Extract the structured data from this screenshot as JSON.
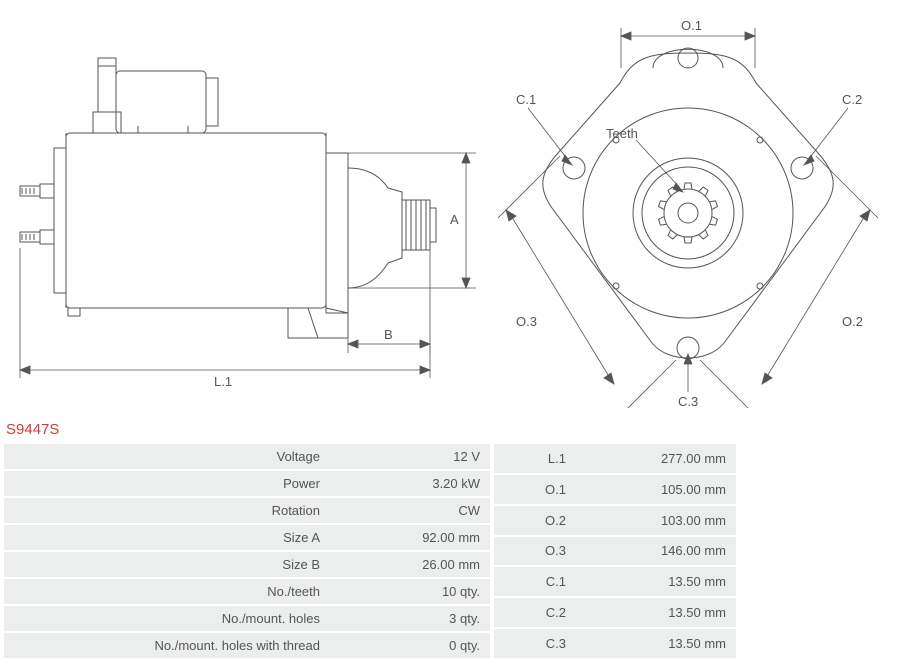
{
  "part_number": "S9447S",
  "part_number_color": "#d23939",
  "diagram": {
    "stroke": "#555555",
    "stroke_width": 1,
    "side_labels": {
      "L1": "L.1",
      "A": "A",
      "B": "B"
    },
    "front_labels": {
      "O1": "O.1",
      "O2": "O.2",
      "O3": "O.3",
      "C1": "C.1",
      "C2": "C.2",
      "C3": "C.3",
      "teeth": "Teeth"
    }
  },
  "specs_left": [
    {
      "label": "Voltage",
      "value": "12 V"
    },
    {
      "label": "Power",
      "value": "3.20 kW"
    },
    {
      "label": "Rotation",
      "value": "CW"
    },
    {
      "label": "Size A",
      "value": "92.00 mm"
    },
    {
      "label": "Size B",
      "value": "26.00 mm"
    },
    {
      "label": "No./teeth",
      "value": "10 qty."
    },
    {
      "label": "No./mount. holes",
      "value": "3 qty."
    },
    {
      "label": "No./mount. holes with thread",
      "value": "0 qty."
    }
  ],
  "specs_right": [
    {
      "label": "L.1",
      "value": "277.00 mm"
    },
    {
      "label": "O.1",
      "value": "105.00 mm"
    },
    {
      "label": "O.2",
      "value": "103.00 mm"
    },
    {
      "label": "O.3",
      "value": "146.00 mm"
    },
    {
      "label": "C.1",
      "value": "13.50 mm"
    },
    {
      "label": "C.2",
      "value": "13.50 mm"
    },
    {
      "label": "C.3",
      "value": "13.50 mm"
    }
  ],
  "table_style": {
    "row_bg": "#eceded",
    "text_color": "#555555",
    "font_size": 13
  }
}
